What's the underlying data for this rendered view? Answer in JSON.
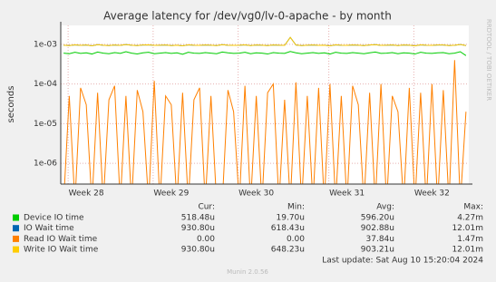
{
  "chart_data": {
    "type": "line",
    "title": "Average latency for /dev/vg0/lv-0-apache - by month",
    "y_label": "seconds",
    "side_label": "RRDTOOL / TOBI OETIKER",
    "log_scale": true,
    "grid": true,
    "ylim": [
      3e-07,
      0.003
    ],
    "yticks": [
      {
        "value": 1e-06,
        "label": "1e-06"
      },
      {
        "value": 1e-05,
        "label": "1e-05"
      },
      {
        "value": 0.0001,
        "label": "1e-04"
      },
      {
        "value": 0.001,
        "label": "1e-03"
      }
    ],
    "categories": [
      null,
      null,
      null,
      null,
      "Week 28",
      null,
      null,
      null,
      null,
      null,
      null,
      null,
      null,
      null,
      null,
      null,
      null,
      null,
      null,
      "Week 29",
      null,
      null,
      null,
      null,
      null,
      null,
      null,
      null,
      null,
      null,
      null,
      null,
      null,
      null,
      "Week 30",
      null,
      null,
      null,
      null,
      null,
      null,
      null,
      null,
      null,
      null,
      null,
      null,
      null,
      null,
      null,
      "Week 31",
      null,
      null,
      null,
      null,
      null,
      null,
      null,
      null,
      null,
      null,
      null,
      null,
      null,
      null,
      "Week 32",
      null,
      null,
      null,
      null,
      null,
      null
    ],
    "legend_columns": [
      "Cur:",
      "Min:",
      "Avg:",
      "Max:"
    ],
    "series": [
      {
        "name": "Device IO time",
        "color": "#00cc00",
        "stats": [
          "518.48u",
          "19.70u",
          "596.20u",
          "4.27m"
        ],
        "values": [
          0.0006,
          0.00058,
          0.00063,
          0.00059,
          0.00061,
          0.00057,
          0.00064,
          0.0006,
          0.00058,
          0.00062,
          0.00059,
          0.00065,
          0.0006,
          0.00057,
          0.00061,
          0.00063,
          0.00058,
          0.0006,
          0.00062,
          0.00059,
          0.00061,
          0.00056,
          0.00063,
          0.0006,
          0.00059,
          0.00062,
          0.0006,
          0.00058,
          0.00064,
          0.00061,
          0.00059,
          0.0006,
          0.00063,
          0.00058,
          0.00061,
          0.0006,
          0.00057,
          0.00062,
          0.0006,
          0.00059,
          0.00066,
          0.00061,
          0.00058,
          0.0006,
          0.00062,
          0.00059,
          0.00061,
          0.00057,
          0.00063,
          0.0006,
          0.00059,
          0.00062,
          0.0006,
          0.00058,
          0.00061,
          0.00064,
          0.00059,
          0.0006,
          0.00062,
          0.00058,
          0.00061,
          0.0006,
          0.00057,
          0.00063,
          0.0006,
          0.00059,
          0.00061,
          0.00062,
          0.00058,
          0.0006,
          0.00065,
          0.00052
        ]
      },
      {
        "name": "IO Wait time",
        "color": "#0066b3",
        "stats": [
          "930.80u",
          "618.43u",
          "902.88u",
          "12.01m"
        ],
        "values": [
          0.00095,
          0.00093,
          0.00097,
          0.00094,
          0.00096,
          0.00092,
          0.00098,
          0.00095,
          0.00093,
          0.00096,
          0.00094,
          0.00099,
          0.00095,
          0.00093,
          0.00096,
          0.00097,
          0.00094,
          0.00095,
          0.00096,
          0.00093,
          0.00095,
          0.00092,
          0.00097,
          0.00095,
          0.00094,
          0.00096,
          0.00095,
          0.00093,
          0.00098,
          0.00095,
          0.00094,
          0.00095,
          0.00097,
          0.00093,
          0.00096,
          0.00095,
          0.00093,
          0.00096,
          0.00095,
          0.00094,
          0.0015,
          0.00096,
          0.00093,
          0.00095,
          0.00096,
          0.00094,
          0.00095,
          0.00092,
          0.00097,
          0.00095,
          0.00094,
          0.00096,
          0.00095,
          0.00093,
          0.00096,
          0.00098,
          0.00094,
          0.00095,
          0.00096,
          0.00093,
          0.00096,
          0.00095,
          0.00092,
          0.00097,
          0.00095,
          0.00094,
          0.00096,
          0.00096,
          0.00093,
          0.00095,
          0.00099,
          0.00093
        ]
      },
      {
        "name": "Read IO Wait time",
        "color": "#ff8000",
        "stats": [
          "0.00",
          "0.00",
          "37.84u",
          "1.47m"
        ],
        "values": [
          1e-07,
          5e-05,
          1e-07,
          8e-05,
          3e-05,
          1e-07,
          6e-05,
          1e-07,
          4e-05,
          9e-05,
          1e-07,
          5e-05,
          1e-07,
          7e-05,
          2e-05,
          1e-07,
          0.00012,
          1e-07,
          5e-05,
          3e-05,
          1e-07,
          6e-05,
          1e-07,
          4e-05,
          8e-05,
          1e-07,
          5e-05,
          1e-07,
          1e-07,
          7e-05,
          2e-05,
          1e-07,
          9e-05,
          1e-07,
          5e-05,
          1e-07,
          6e-05,
          0.0001,
          1e-07,
          4e-05,
          1e-07,
          0.00011,
          1e-07,
          5e-05,
          1e-07,
          8e-05,
          1e-07,
          0.0001,
          1e-07,
          5e-05,
          1e-07,
          9e-05,
          3e-05,
          1e-07,
          6e-05,
          1e-07,
          0.0001,
          1e-07,
          5e-05,
          2e-05,
          1e-07,
          8e-05,
          1e-07,
          6e-05,
          1e-07,
          0.0001,
          1e-07,
          7e-05,
          1e-07,
          0.0004,
          1e-07,
          2e-05
        ]
      },
      {
        "name": "Write IO Wait time",
        "color": "#ffcc00",
        "stats": [
          "930.80u",
          "648.23u",
          "903.21u",
          "12.01m"
        ],
        "values": [
          0.00095,
          0.00093,
          0.00097,
          0.00094,
          0.00096,
          0.00092,
          0.00098,
          0.00095,
          0.00093,
          0.00096,
          0.00094,
          0.00099,
          0.00095,
          0.00093,
          0.00096,
          0.00097,
          0.00094,
          0.00095,
          0.00096,
          0.00093,
          0.00095,
          0.00092,
          0.00097,
          0.00095,
          0.00094,
          0.00096,
          0.00095,
          0.00093,
          0.00098,
          0.00095,
          0.00094,
          0.00095,
          0.00097,
          0.00093,
          0.00096,
          0.00095,
          0.00093,
          0.00096,
          0.00095,
          0.00094,
          0.0015,
          0.00096,
          0.00093,
          0.00095,
          0.00096,
          0.00094,
          0.00095,
          0.00092,
          0.00097,
          0.00095,
          0.00094,
          0.00096,
          0.00095,
          0.00093,
          0.00096,
          0.00098,
          0.00094,
          0.00095,
          0.00096,
          0.00093,
          0.00096,
          0.00095,
          0.00092,
          0.00097,
          0.00095,
          0.00094,
          0.00096,
          0.00096,
          0.00093,
          0.00095,
          0.00099,
          0.00093
        ]
      }
    ],
    "last_update": "Last update: Sat Aug 10 15:20:04 2024",
    "footer": "Munin 2.0.56"
  }
}
